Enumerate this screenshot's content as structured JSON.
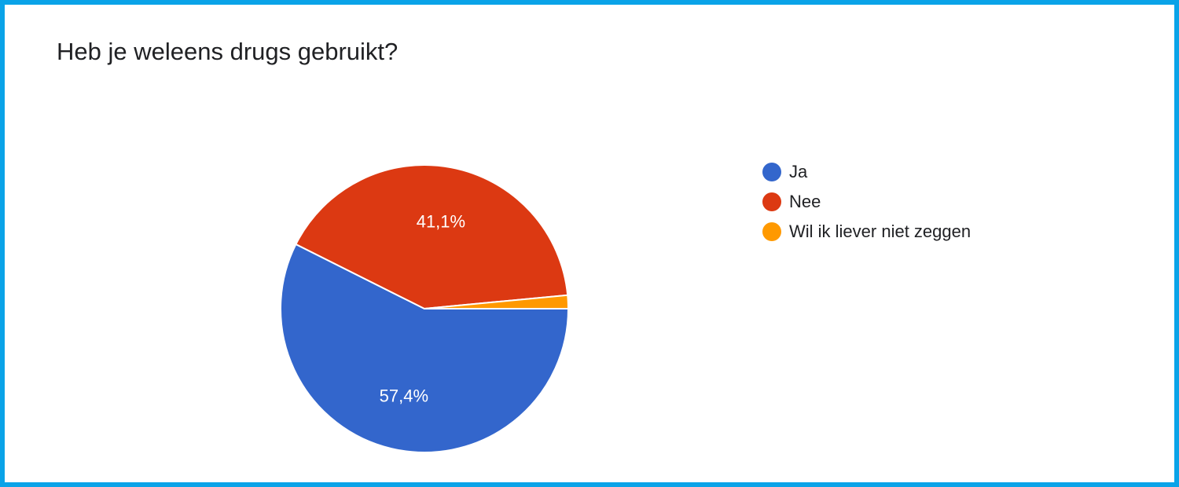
{
  "chart_data": {
    "type": "pie",
    "title": "Heb je weleens drugs gebruikt?",
    "categories": [
      "Ja",
      "Nee",
      "Wil ik liever niet zeggen"
    ],
    "values": [
      57.4,
      41.1,
      1.5
    ],
    "data_labels": [
      "57,4%",
      "41,1%",
      ""
    ],
    "colors": [
      "#3366cc",
      "#dc3912",
      "#ff9900"
    ],
    "legend_position": "right"
  }
}
